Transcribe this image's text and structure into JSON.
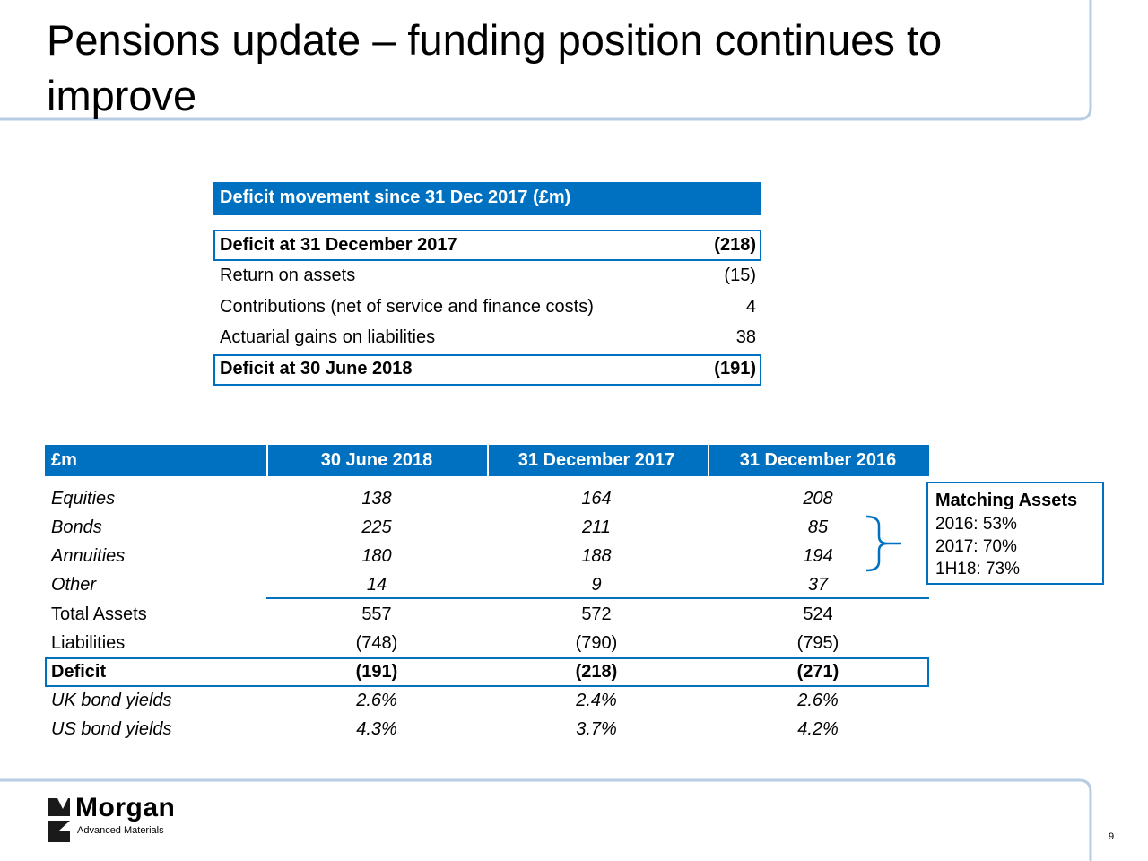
{
  "header": {
    "title": "Pensions update – funding position continues to improve"
  },
  "movement_table": {
    "title": "Deficit movement since 31 Dec 2017 (£m)",
    "rows": [
      [
        "Deficit at 31 December 2017",
        "(218)"
      ],
      [
        "Return on assets",
        "(15)"
      ],
      [
        "Contributions (net of service and finance costs)",
        "4"
      ],
      [
        "Actuarial gains on liabilities",
        "38"
      ],
      [
        "Deficit at 30 June 2018",
        "(191)"
      ]
    ]
  },
  "main_table": {
    "headers": [
      "£m",
      "30 June 2018",
      "31 December 2017",
      "31 December 2016"
    ],
    "rows": [
      [
        "Equities",
        "138",
        "164",
        "208"
      ],
      [
        "Bonds",
        "225",
        "211",
        "85"
      ],
      [
        "Annuities",
        "180",
        "188",
        "194"
      ],
      [
        "Other",
        "14",
        "9",
        "37"
      ],
      [
        "Total Assets",
        "557",
        "572",
        "524"
      ],
      [
        "Liabilities",
        "(748)",
        "(790)",
        "(795)"
      ],
      [
        "Deficit",
        "(191)",
        "(218)",
        "(271)"
      ],
      [
        "UK bond yields",
        "2.6%",
        "2.4%",
        "2.6%"
      ],
      [
        "US bond yields",
        "4.3%",
        "3.7%",
        "4.2%"
      ]
    ]
  },
  "matching_assets": {
    "title": "Matching Assets",
    "lines": [
      "2016: 53%",
      "2017: 70%",
      "1H18: 73%"
    ]
  },
  "logo": {
    "name": "Morgan",
    "tagline": "Advanced Materials"
  },
  "footer": {
    "page_number": "9"
  }
}
